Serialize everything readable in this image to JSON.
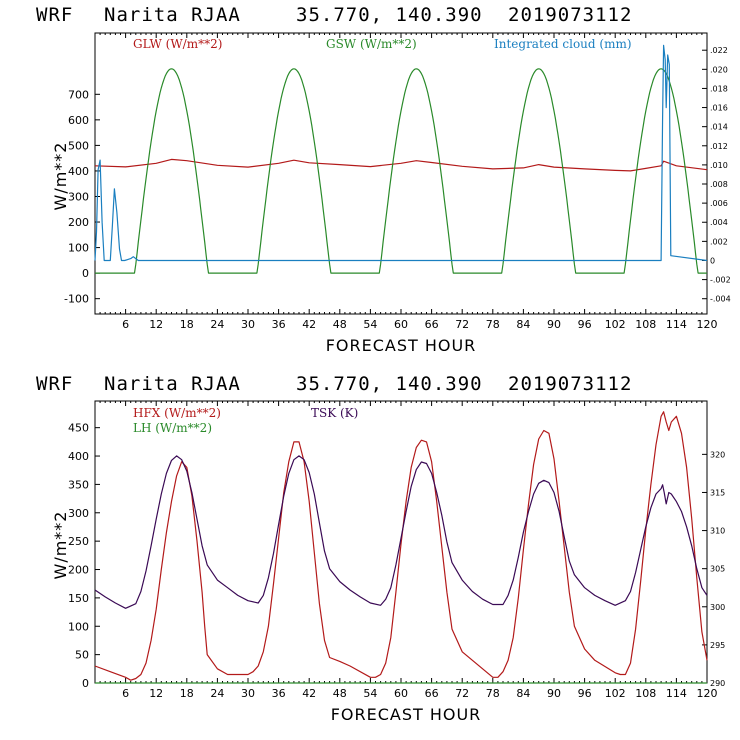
{
  "colors": {
    "red": "#b31a1a",
    "green": "#2a8a2a",
    "blue": "#1a7fc0",
    "purple": "#3a0a55"
  },
  "top": {
    "title": {
      "model": "WRF",
      "station": "Narita RJAA",
      "coords": "35.770, 140.390",
      "init": "2019073112"
    },
    "xlabel": "FORECAST HOUR",
    "ylabel": "W/m**2"
  },
  "bottom": {
    "title": {
      "model": "WRF",
      "station": "Narita RJAA",
      "coords": "35.770, 140.390",
      "init": "2019073112"
    },
    "xlabel": "FORECAST HOUR",
    "ylabel": "W/m**2"
  },
  "chart_data": [
    {
      "type": "line",
      "xlim": [
        0,
        120
      ],
      "ylim": [
        -160,
        940
      ],
      "x_ticks": [
        6,
        12,
        18,
        24,
        30,
        36,
        42,
        48,
        54,
        60,
        66,
        72,
        78,
        84,
        90,
        96,
        102,
        108,
        114,
        120
      ],
      "y_ticks": [
        -100,
        0,
        100,
        200,
        300,
        400,
        500,
        600,
        700
      ],
      "y2lim": [
        -0.0056,
        0.0238
      ],
      "y2_ticks": [
        ".022",
        ".020",
        ".018",
        ".016",
        ".014",
        ".012",
        ".010",
        ".008",
        ".006",
        ".004",
        ".002",
        "0",
        "-.002",
        "-.004"
      ],
      "series": [
        {
          "name": "GLW (W/m**2)",
          "color": "red",
          "axis": "left",
          "x": [
            0,
            6,
            12,
            15,
            18,
            24,
            30,
            36,
            39,
            42,
            48,
            54,
            60,
            63,
            66,
            72,
            78,
            84,
            87,
            90,
            96,
            102,
            105,
            108,
            111,
            111.5,
            114,
            120
          ],
          "y": [
            420,
            416,
            430,
            445,
            440,
            422,
            415,
            430,
            442,
            432,
            425,
            417,
            430,
            440,
            433,
            418,
            408,
            412,
            425,
            415,
            408,
            402,
            400,
            410,
            420,
            438,
            420,
            405
          ]
        },
        {
          "name": "GSW (W/m**2)",
          "color": "green",
          "axis": "left",
          "period": 24,
          "peak_hour": 15,
          "half_width": 7.2,
          "peak": 800
        },
        {
          "name": "Integrated cloud (mm)",
          "color": "blue",
          "axis": "right",
          "x": [
            0,
            0.3,
            0.6,
            1,
            1.4,
            1.8,
            2.2,
            3.0,
            3.4,
            3.8,
            4.3,
            4.8,
            5.2,
            5.8,
            7.0,
            7.5,
            8.0,
            8.5,
            9.0,
            10,
            111.0,
            111.3,
            111.5,
            111.8,
            112.0,
            112.3,
            112.6,
            112.9,
            120
          ],
          "y": [
            0,
            0.003,
            0.0095,
            0.0105,
            0.004,
            0,
            0,
            0,
            0.0035,
            0.0075,
            0.005,
            0.0012,
            0,
            0,
            0.0002,
            0.0004,
            0.0002,
            0,
            0,
            0,
            0,
            0.015,
            0.0225,
            0.021,
            0.016,
            0.0215,
            0.0205,
            0.0005,
            0
          ]
        }
      ]
    },
    {
      "type": "line",
      "xlim": [
        0,
        120
      ],
      "ylim": [
        0,
        497
      ],
      "x_ticks": [
        6,
        12,
        18,
        24,
        30,
        36,
        42,
        48,
        54,
        60,
        66,
        72,
        78,
        84,
        90,
        96,
        102,
        108,
        114,
        120
      ],
      "y_ticks": [
        0,
        50,
        100,
        150,
        200,
        250,
        300,
        350,
        400,
        450
      ],
      "y2lim": [
        290,
        327
      ],
      "y2_ticks": [
        290,
        295,
        300,
        305,
        310,
        315,
        320
      ],
      "series": [
        {
          "name": "HFX (W/m**2)",
          "color": "red",
          "axis": "left",
          "x": [
            0,
            3,
            6,
            7,
            8,
            9,
            10,
            11,
            12,
            13,
            14,
            15,
            16,
            17,
            18,
            19,
            20,
            21,
            21.5,
            22,
            24,
            26,
            30,
            31,
            32,
            33,
            34,
            35,
            36,
            37,
            38,
            39,
            40,
            41,
            42,
            43,
            44,
            45,
            46,
            48,
            50,
            54,
            55,
            56,
            57,
            58,
            59,
            60,
            61,
            62,
            63,
            64,
            65,
            66,
            67,
            68,
            69,
            70,
            72,
            74,
            78,
            79,
            80,
            81,
            82,
            83,
            84,
            85,
            86,
            87,
            88,
            89,
            90,
            91,
            92,
            93,
            94,
            96,
            98,
            102,
            103,
            104,
            105,
            106,
            107,
            108,
            109,
            110,
            111,
            111.5,
            112,
            112.5,
            113,
            114,
            115,
            116,
            117,
            118,
            119,
            120
          ],
          "y": [
            30,
            20,
            10,
            5,
            8,
            15,
            35,
            75,
            130,
            200,
            265,
            320,
            365,
            390,
            380,
            330,
            250,
            160,
            100,
            50,
            25,
            15,
            15,
            20,
            30,
            55,
            100,
            175,
            255,
            335,
            390,
            425,
            425,
            390,
            320,
            230,
            140,
            75,
            45,
            38,
            30,
            10,
            10,
            15,
            35,
            80,
            160,
            245,
            320,
            380,
            415,
            428,
            425,
            390,
            320,
            240,
            160,
            95,
            55,
            40,
            10,
            10,
            20,
            40,
            80,
            150,
            235,
            315,
            385,
            430,
            445,
            440,
            395,
            320,
            240,
            160,
            100,
            60,
            40,
            18,
            15,
            15,
            35,
            95,
            180,
            270,
            350,
            420,
            470,
            478,
            460,
            445,
            460,
            470,
            440,
            380,
            290,
            185,
            90,
            40
          ]
        },
        {
          "name": "LH (W/m**2)",
          "color": "green",
          "axis": "left",
          "x": [
            0,
            120
          ],
          "y": [
            0,
            0
          ]
        },
        {
          "name": "TSK (K)",
          "color": "purple",
          "axis": "right",
          "x": [
            0,
            2,
            4,
            6,
            8,
            9,
            10,
            11,
            12,
            13,
            14,
            15,
            16,
            17,
            18,
            19,
            20,
            21,
            22,
            24,
            26,
            28,
            30,
            32,
            33,
            34,
            35,
            36,
            37,
            38,
            39,
            40,
            41,
            42,
            43,
            44,
            45,
            46,
            48,
            50,
            52,
            54,
            56,
            57,
            58,
            59,
            60,
            61,
            62,
            63,
            64,
            65,
            66,
            67,
            68,
            69,
            70,
            72,
            74,
            76,
            78,
            80,
            81,
            82,
            83,
            84,
            85,
            86,
            87,
            88,
            89,
            90,
            91,
            92,
            93,
            94,
            96,
            98,
            100,
            102,
            104,
            105,
            106,
            107,
            108,
            109,
            110,
            111,
            111.3,
            111.6,
            112,
            112.5,
            113,
            114,
            115,
            116,
            117,
            118,
            119,
            120
          ],
          "y": [
            302.2,
            301.3,
            300.5,
            299.8,
            300.4,
            302.0,
            304.7,
            308.0,
            311.5,
            314.8,
            317.5,
            319.2,
            319.8,
            319.3,
            317.8,
            315.0,
            311.5,
            308.0,
            305.5,
            303.5,
            302.5,
            301.5,
            300.8,
            300.5,
            301.5,
            303.8,
            307.0,
            310.8,
            314.5,
            317.5,
            319.3,
            319.8,
            319.3,
            317.6,
            314.8,
            311.0,
            307.3,
            305.0,
            303.3,
            302.2,
            301.3,
            300.5,
            300.2,
            301.0,
            302.5,
            305.5,
            309.0,
            312.5,
            315.8,
            318.0,
            319.0,
            318.8,
            317.5,
            315.0,
            312.0,
            308.5,
            305.8,
            303.5,
            302.0,
            301.0,
            300.3,
            300.3,
            301.5,
            303.5,
            306.5,
            309.8,
            312.5,
            314.8,
            316.2,
            316.6,
            316.3,
            315.0,
            312.5,
            309.2,
            306.0,
            304.2,
            302.5,
            301.5,
            300.8,
            300.2,
            300.8,
            302.0,
            304.5,
            307.5,
            310.5,
            313.0,
            314.8,
            315.5,
            316.0,
            315.0,
            313.5,
            315.0,
            314.8,
            313.8,
            312.5,
            310.5,
            308.0,
            305.0,
            302.5,
            301.5
          ]
        }
      ]
    }
  ]
}
